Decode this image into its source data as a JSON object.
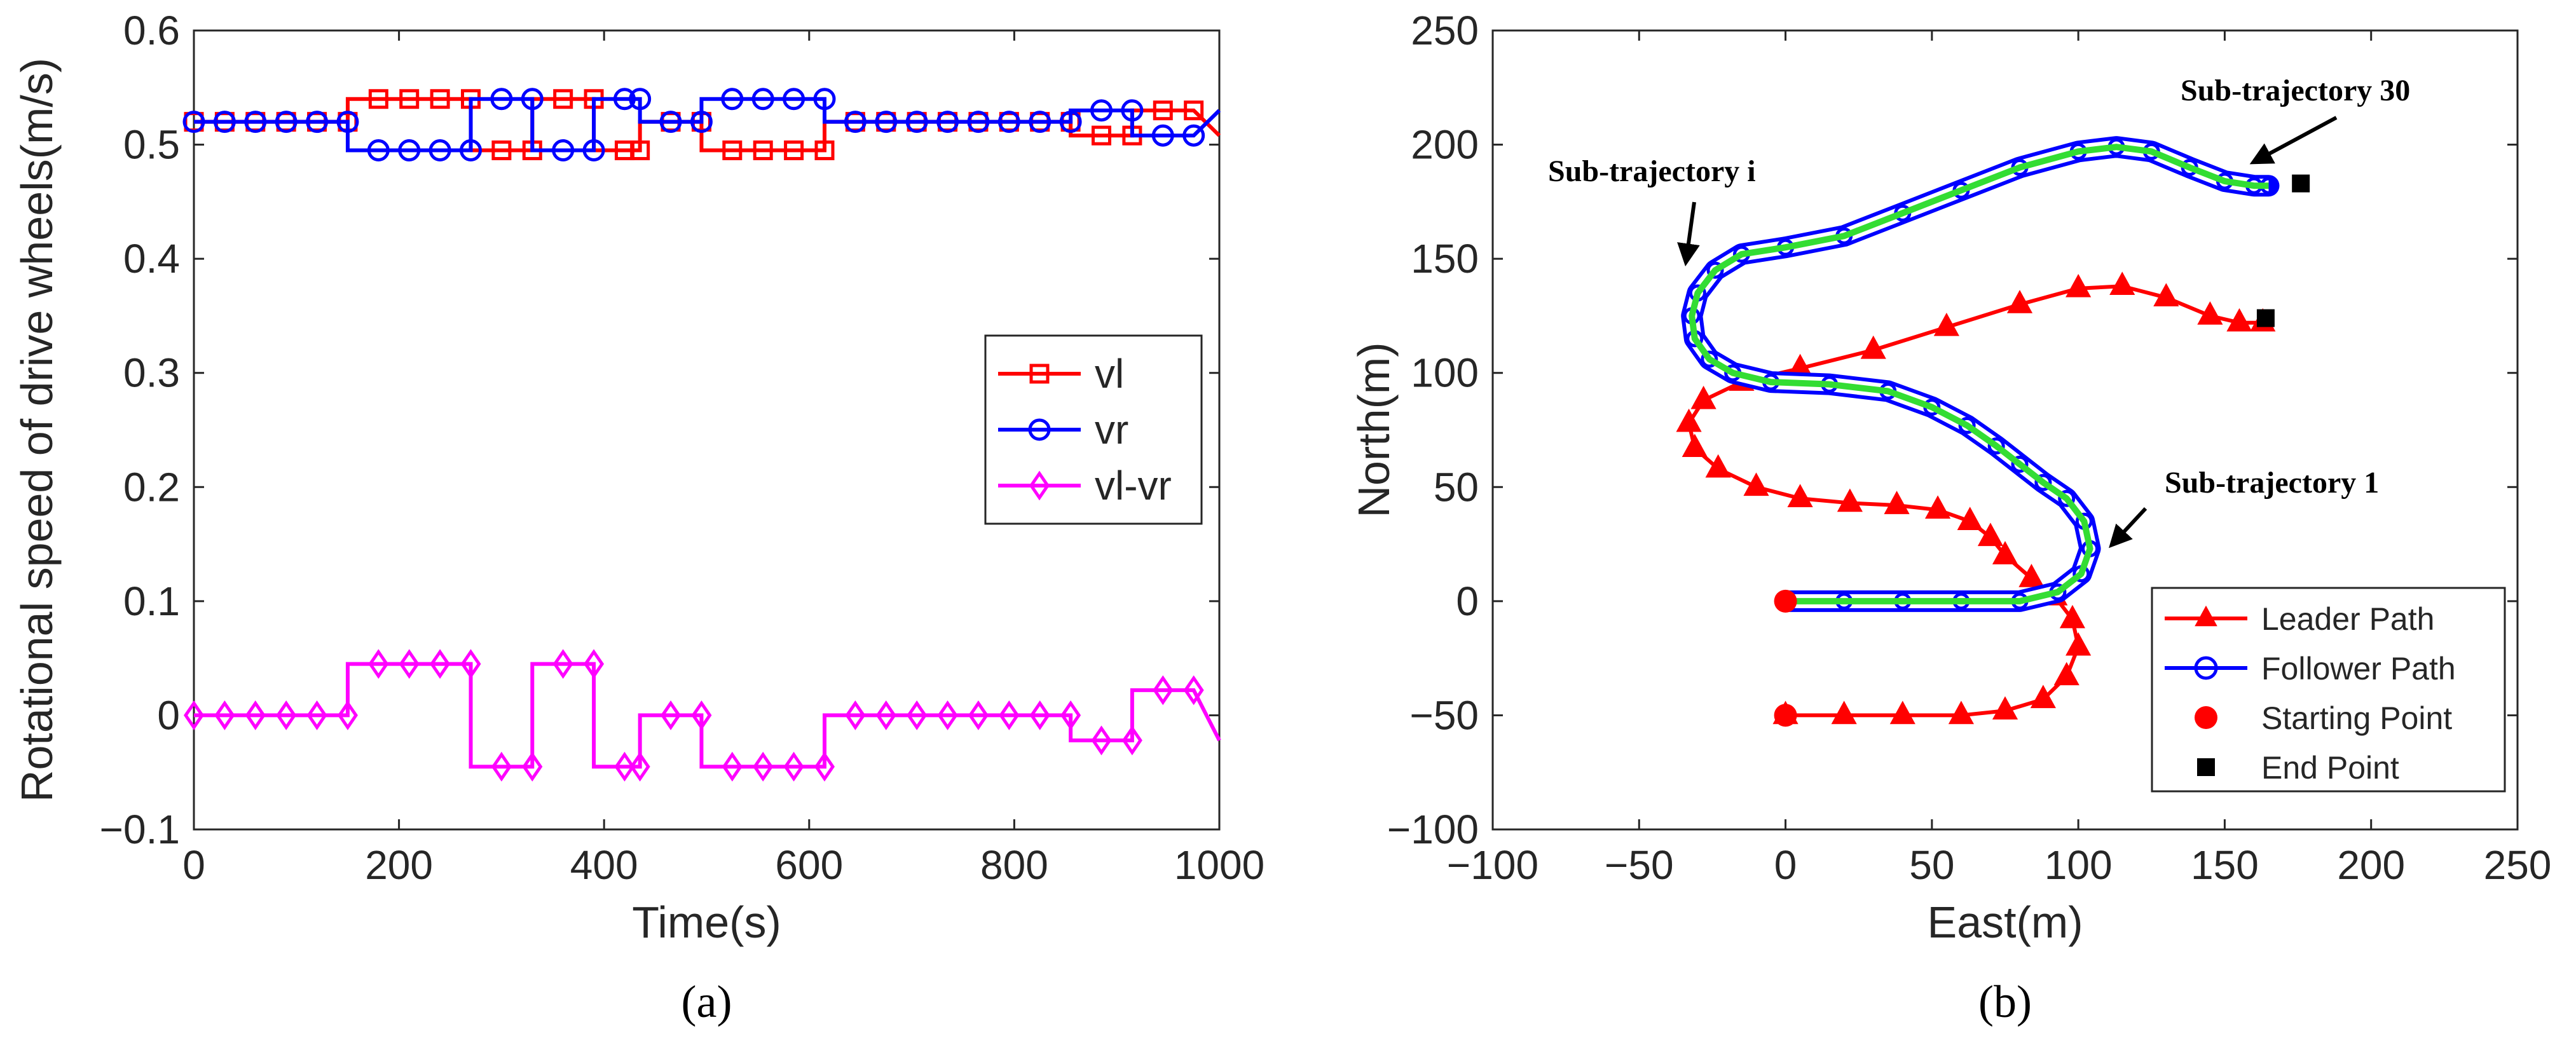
{
  "chart_data": [
    {
      "type": "line",
      "panel_label": "(a)",
      "xlabel": "Time(s)",
      "ylabel": "Rotational speed of drive wheels(m/s)",
      "xlim": [
        0,
        1000
      ],
      "ylim": [
        -0.1,
        0.6
      ],
      "xticks": [
        0,
        200,
        400,
        600,
        800,
        1000
      ],
      "xtick_labels": [
        "0",
        "200",
        "400",
        "600",
        "800",
        "1000"
      ],
      "yticks": [
        -0.1,
        0,
        0.1,
        0.2,
        0.3,
        0.4,
        0.5,
        0.6
      ],
      "ytick_labels": [
        "−0.1",
        "0",
        "0.1",
        "0.2",
        "0.3",
        "0.4",
        "0.5",
        "0.6"
      ],
      "legend_position": "center-right",
      "series": [
        {
          "name": "vl",
          "color": "#ff0000",
          "marker": "square",
          "x": [
            0,
            30,
            60,
            90,
            120,
            150,
            150,
            180,
            210,
            240,
            270,
            270,
            300,
            330,
            330,
            360,
            390,
            390,
            420,
            435,
            435,
            465,
            495,
            495,
            525,
            555,
            585,
            615,
            615,
            645,
            675,
            705,
            735,
            765,
            795,
            825,
            855,
            855,
            885,
            915,
            915,
            945,
            975,
            1000
          ],
          "y": [
            0.52,
            0.52,
            0.52,
            0.52,
            0.52,
            0.52,
            0.54,
            0.54,
            0.54,
            0.54,
            0.54,
            0.495,
            0.495,
            0.495,
            0.54,
            0.54,
            0.54,
            0.495,
            0.495,
            0.495,
            0.52,
            0.52,
            0.52,
            0.495,
            0.495,
            0.495,
            0.495,
            0.495,
            0.52,
            0.52,
            0.52,
            0.52,
            0.52,
            0.52,
            0.52,
            0.52,
            0.52,
            0.508,
            0.508,
            0.508,
            0.53,
            0.53,
            0.53,
            0.508
          ]
        },
        {
          "name": "vr",
          "color": "#0000ff",
          "marker": "circle",
          "x": [
            0,
            30,
            60,
            90,
            120,
            150,
            150,
            180,
            210,
            240,
            270,
            270,
            300,
            330,
            330,
            360,
            390,
            390,
            420,
            435,
            435,
            465,
            495,
            495,
            525,
            555,
            585,
            615,
            615,
            645,
            675,
            705,
            735,
            765,
            795,
            825,
            855,
            855,
            885,
            915,
            915,
            945,
            975,
            1000
          ],
          "y": [
            0.52,
            0.52,
            0.52,
            0.52,
            0.52,
            0.52,
            0.495,
            0.495,
            0.495,
            0.495,
            0.495,
            0.54,
            0.54,
            0.54,
            0.495,
            0.495,
            0.495,
            0.54,
            0.54,
            0.54,
            0.52,
            0.52,
            0.52,
            0.54,
            0.54,
            0.54,
            0.54,
            0.54,
            0.52,
            0.52,
            0.52,
            0.52,
            0.52,
            0.52,
            0.52,
            0.52,
            0.52,
            0.53,
            0.53,
            0.53,
            0.508,
            0.508,
            0.508,
            0.53
          ]
        },
        {
          "name": "vl-vr",
          "color": "#ff00ff",
          "marker": "diamond",
          "x": [
            0,
            30,
            60,
            90,
            120,
            150,
            150,
            180,
            210,
            240,
            270,
            270,
            300,
            330,
            330,
            360,
            390,
            390,
            420,
            435,
            435,
            465,
            495,
            495,
            525,
            555,
            585,
            615,
            615,
            645,
            675,
            705,
            735,
            765,
            795,
            825,
            855,
            855,
            885,
            915,
            915,
            945,
            975,
            1000
          ],
          "y": [
            0,
            0,
            0,
            0,
            0,
            0,
            0.045,
            0.045,
            0.045,
            0.045,
            0.045,
            -0.045,
            -0.045,
            -0.045,
            0.045,
            0.045,
            0.045,
            -0.045,
            -0.045,
            -0.045,
            0,
            0,
            0,
            -0.045,
            -0.045,
            -0.045,
            -0.045,
            -0.045,
            0,
            0,
            0,
            0,
            0,
            0,
            0,
            0,
            0,
            -0.022,
            -0.022,
            -0.022,
            0.022,
            0.022,
            0.022,
            -0.022
          ]
        }
      ]
    },
    {
      "type": "line",
      "panel_label": "(b)",
      "xlabel": "East(m)",
      "ylabel": "North(m)",
      "xlim": [
        -100,
        250
      ],
      "ylim": [
        -100,
        250
      ],
      "xticks": [
        -100,
        -50,
        0,
        50,
        100,
        150,
        200,
        250
      ],
      "xtick_labels": [
        "−100",
        "−50",
        "0",
        "50",
        "100",
        "150",
        "200",
        "250"
      ],
      "yticks": [
        -100,
        -50,
        0,
        50,
        100,
        150,
        200,
        250
      ],
      "ytick_labels": [
        "−100",
        "−50",
        "0",
        "50",
        "100",
        "150",
        "200",
        "250"
      ],
      "legend_position": "bottom-right",
      "series": [
        {
          "name": "Leader Path",
          "color": "#ff0000",
          "marker": "triangle",
          "x": [
            0,
            20,
            40,
            60,
            75,
            88,
            96,
            100,
            98,
            92,
            84,
            75,
            70,
            63,
            52,
            38,
            22,
            5,
            -10,
            -23,
            -31,
            -33,
            -28,
            -15,
            5,
            30,
            55,
            80,
            100,
            115,
            130,
            145,
            155,
            163
          ],
          "y": [
            -50,
            -50,
            -50,
            -50,
            -48,
            -43,
            -33,
            -20,
            -8,
            2,
            10,
            20,
            28,
            35,
            40,
            42,
            43,
            45,
            50,
            58,
            67,
            78,
            88,
            96,
            102,
            110,
            120,
            130,
            137,
            138,
            133,
            125,
            122,
            122
          ]
        },
        {
          "name": "Follower Path",
          "color": "#0000ff",
          "marker": "circle",
          "inner_color": "#33dd33",
          "x": [
            0,
            20,
            40,
            60,
            80,
            93,
            101,
            104,
            102,
            96,
            88,
            80,
            72,
            62,
            50,
            35,
            15,
            -5,
            -18,
            -26,
            -31,
            -32,
            -30,
            -24,
            -15,
            0,
            20,
            40,
            60,
            80,
            100,
            113,
            125,
            138,
            150,
            160,
            165
          ],
          "y": [
            0,
            0,
            0,
            0,
            0,
            4,
            12,
            23,
            35,
            45,
            52,
            60,
            68,
            77,
            85,
            92,
            95,
            96,
            100,
            106,
            115,
            125,
            135,
            145,
            152,
            155,
            160,
            170,
            180,
            190,
            197,
            199,
            197,
            190,
            184,
            182,
            182
          ]
        },
        {
          "name": "Starting Point",
          "color": "#ff0000",
          "marker": "dot",
          "x": [
            0,
            0
          ],
          "y": [
            0,
            -50
          ]
        },
        {
          "name": "End Point",
          "color": "#000000",
          "marker": "filled-square",
          "x": [
            176,
            164
          ],
          "y": [
            183,
            124
          ]
        }
      ],
      "annotations": [
        {
          "text": "Sub-trajectory 30",
          "x": 172,
          "y": 218
        },
        {
          "text": "Sub-trajectory i",
          "x": -50,
          "y": 188
        },
        {
          "text": "Sub-trajectory 1",
          "x": 162,
          "y": 51
        }
      ]
    }
  ]
}
